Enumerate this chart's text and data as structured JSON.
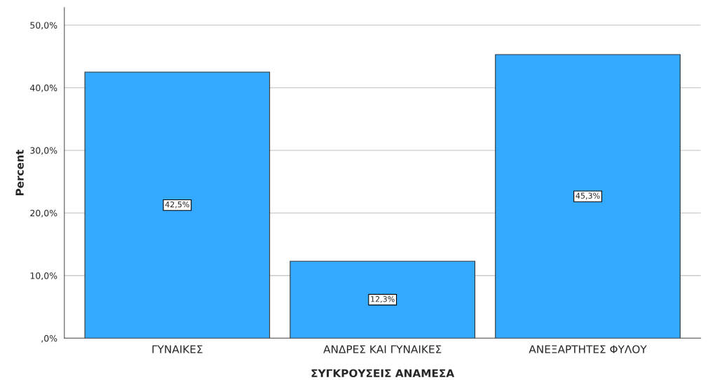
{
  "chart_data": {
    "type": "bar",
    "xlabel": "ΣΥΓΚΡΟΥΣΕΙΣ ΑΝΑΜΕΣΑ",
    "ylabel": "Percent",
    "categories": [
      "ΓΥΝΑΙΚΕΣ",
      "ΑΝΔΡΕΣ ΚΑΙ ΓΥΝΑΙΚΕΣ",
      "ΑΝΕΞΑΡΤΗΤΕΣ ΦΥΛΟΥ"
    ],
    "values": [
      42.5,
      12.3,
      45.3
    ],
    "value_labels": [
      "42,5%",
      "12,3%",
      "45,3%"
    ],
    "color": "#33aaff",
    "ylim": [
      0,
      52.8
    ],
    "yticks": [
      {
        "value": 0,
        "label": ",0%"
      },
      {
        "value": 10,
        "label": "10,0%"
      },
      {
        "value": 20,
        "label": "20,0%"
      },
      {
        "value": 30,
        "label": "30,0%"
      },
      {
        "value": 40,
        "label": "40,0%"
      },
      {
        "value": 50,
        "label": "50,0%"
      }
    ],
    "grid": "y",
    "legend": false
  }
}
